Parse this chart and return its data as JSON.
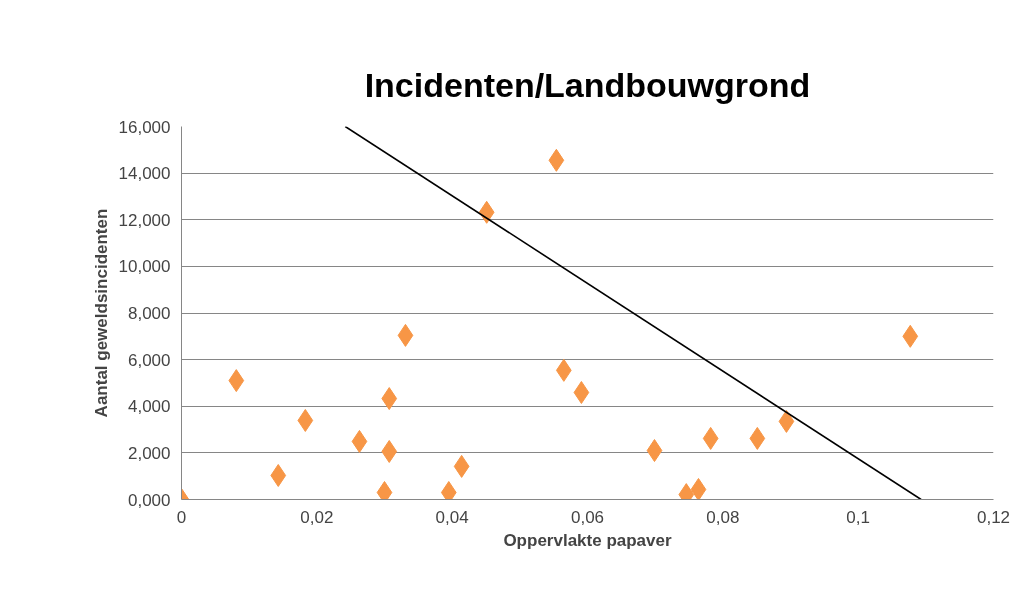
{
  "chart_data": {
    "type": "scatter",
    "title": "Incidenten/Landbouwgrond",
    "xlabel": "Oppervlakte papaver",
    "ylabel": "Aantal geweldsincidenten",
    "series": [
      {
        "color": "#f79646",
        "marker": "diamond",
        "x": [
          0,
          0.0081,
          0.0143,
          0.0183,
          0.0263,
          0.03,
          0.0307,
          0.0307,
          0.0331,
          0.0395,
          0.0414,
          0.0451,
          0.0554,
          0.0565,
          0.0591,
          0.0699,
          0.0746,
          0.0764,
          0.0782,
          0.0851,
          0.0894,
          0.1077
        ],
        "values": [
          0,
          5.1,
          1.03,
          3.39,
          2.49,
          0.3,
          2.06,
          4.33,
          7.04,
          0.3,
          1.42,
          12.32,
          14.55,
          5.54,
          4.59,
          2.1,
          0.21,
          0.43,
          2.62,
          2.62,
          3.35,
          7.0
        ]
      },
      {
        "type": "line",
        "color": "#000000",
        "marker": "none",
        "x": [
          0.0242,
          0.1093
        ],
        "values": [
          16,
          0
        ]
      }
    ],
    "xlim": [
      0,
      0.12
    ],
    "ylim": [
      0,
      16
    ],
    "xticks": [
      0,
      {
        "value": 0.02,
        "label": "0,02"
      },
      {
        "value": 0.04,
        "label": "0,04"
      },
      {
        "value": 0.06,
        "label": "0,06"
      },
      {
        "value": 0.08,
        "label": "0,08"
      },
      {
        "value": 0.1,
        "label": "0,1"
      },
      {
        "value": 0.12,
        "label": "0,12"
      }
    ],
    "yticks": [
      {
        "value": 0,
        "label": "0,000"
      },
      {
        "value": 2,
        "label": "2,000"
      },
      {
        "value": 4,
        "label": "4,000"
      },
      {
        "value": 6,
        "label": "6,000"
      },
      {
        "value": 8,
        "label": "8,000"
      },
      {
        "value": 10,
        "label": "10,000"
      },
      {
        "value": 12,
        "label": "12,000"
      },
      {
        "value": 14,
        "label": "14,000"
      },
      {
        "value": 16,
        "label": "16,000"
      }
    ],
    "grid": "y"
  }
}
